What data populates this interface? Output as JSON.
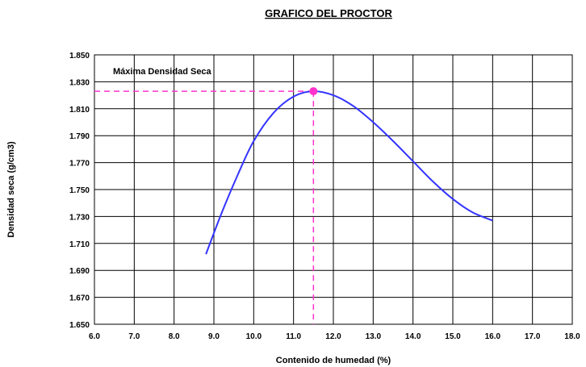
{
  "chart_data": {
    "type": "line",
    "title": "GRAFICO DEL PROCTOR",
    "xlabel": "Contenido de humedad (%)",
    "ylabel": "Densidad seca (g/cm3)",
    "xlim": [
      6.0,
      18.0
    ],
    "ylim": [
      1.65,
      1.85
    ],
    "x_ticks": [
      "6.0",
      "7.0",
      "8.0",
      "9.0",
      "10.0",
      "11.0",
      "12.0",
      "13.0",
      "14.0",
      "15.0",
      "16.0",
      "17.0",
      "18.0"
    ],
    "y_ticks": [
      "1.850",
      "1.830",
      "1.810",
      "1.790",
      "1.770",
      "1.750",
      "1.730",
      "1.710",
      "1.690",
      "1.670",
      "1.650"
    ],
    "grid": true,
    "series": [
      {
        "color": "#3333ff",
        "points": [
          [
            8.8,
            1.702
          ],
          [
            9.2,
            1.733
          ],
          [
            9.6,
            1.761
          ],
          [
            10.0,
            1.786
          ],
          [
            10.5,
            1.807
          ],
          [
            11.0,
            1.819
          ],
          [
            11.5,
            1.823
          ],
          [
            12.0,
            1.82
          ],
          [
            12.5,
            1.812
          ],
          [
            13.0,
            1.8
          ],
          [
            13.5,
            1.786
          ],
          [
            14.0,
            1.771
          ],
          [
            14.5,
            1.756
          ],
          [
            15.0,
            1.743
          ],
          [
            15.5,
            1.733
          ],
          [
            16.0,
            1.727
          ]
        ]
      }
    ],
    "max_point": {
      "x": 11.5,
      "y": 1.823,
      "color": "#ff33cc"
    },
    "annotation": "Máxima Densidad Seca"
  }
}
